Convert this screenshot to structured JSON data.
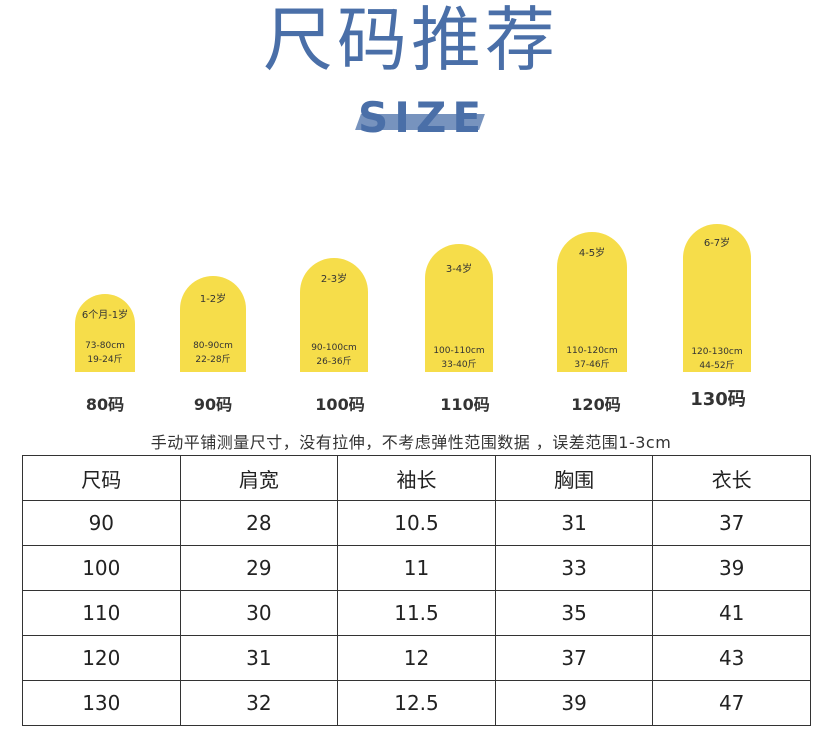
{
  "header": {
    "title": "尺码推荐",
    "subtitle": "SIZE",
    "accent_color": "#4a6fa8"
  },
  "size_cards": {
    "card_color": "#f6dd4a",
    "items": [
      {
        "age": "6个月-1岁",
        "height": "73-80cm",
        "weight": "19-24斤",
        "label": "80码"
      },
      {
        "age": "1-2岁",
        "height": "80-90cm",
        "weight": "22-28斤",
        "label": "90码"
      },
      {
        "age": "2-3岁",
        "height": "90-100cm",
        "weight": "26-36斤",
        "label": "100码"
      },
      {
        "age": "3-4岁",
        "height": "100-110cm",
        "weight": "33-40斤",
        "label": "110码"
      },
      {
        "age": "4-5岁",
        "height": "110-120cm",
        "weight": "37-46斤",
        "label": "120码"
      },
      {
        "age": "6-7岁",
        "height": "120-130cm",
        "weight": "44-52斤",
        "label": "130码"
      }
    ]
  },
  "note": "手动平铺测量尺寸，没有拉伸，不考虑弹性范围数据 ，误差范围1-3cm",
  "table": {
    "headers": [
      "尺码",
      "肩宽",
      "袖长",
      "胸围",
      "衣长"
    ],
    "rows": [
      [
        "90",
        "28",
        "10.5",
        "31",
        "37"
      ],
      [
        "100",
        "29",
        "11",
        "33",
        "39"
      ],
      [
        "110",
        "30",
        "11.5",
        "35",
        "41"
      ],
      [
        "120",
        "31",
        "12",
        "37",
        "43"
      ],
      [
        "130",
        "32",
        "12.5",
        "39",
        "47"
      ]
    ]
  }
}
